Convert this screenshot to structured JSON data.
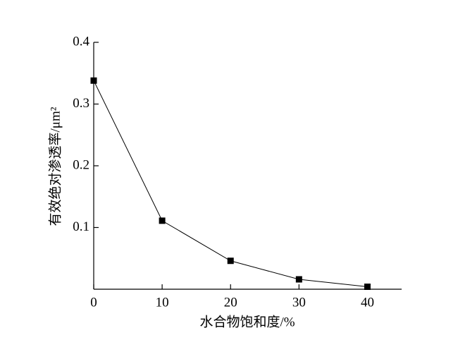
{
  "chart_data": {
    "type": "line",
    "x": [
      0,
      10,
      20,
      30,
      40
    ],
    "series": [
      {
        "color": "#000000",
        "values": [
          0.338,
          0.111,
          0.046,
          0.016,
          0.004
        ]
      }
    ],
    "xlabel": "水合物饱和度/%",
    "ylabel": "有效绝对渗透率/μm²",
    "xlim": [
      0,
      45
    ],
    "xticks": [
      0,
      10,
      20,
      30,
      40
    ],
    "ylim": [
      0,
      0.4
    ],
    "yticks": [
      0.1,
      0.2,
      0.3,
      0.4
    ],
    "grid": false
  }
}
